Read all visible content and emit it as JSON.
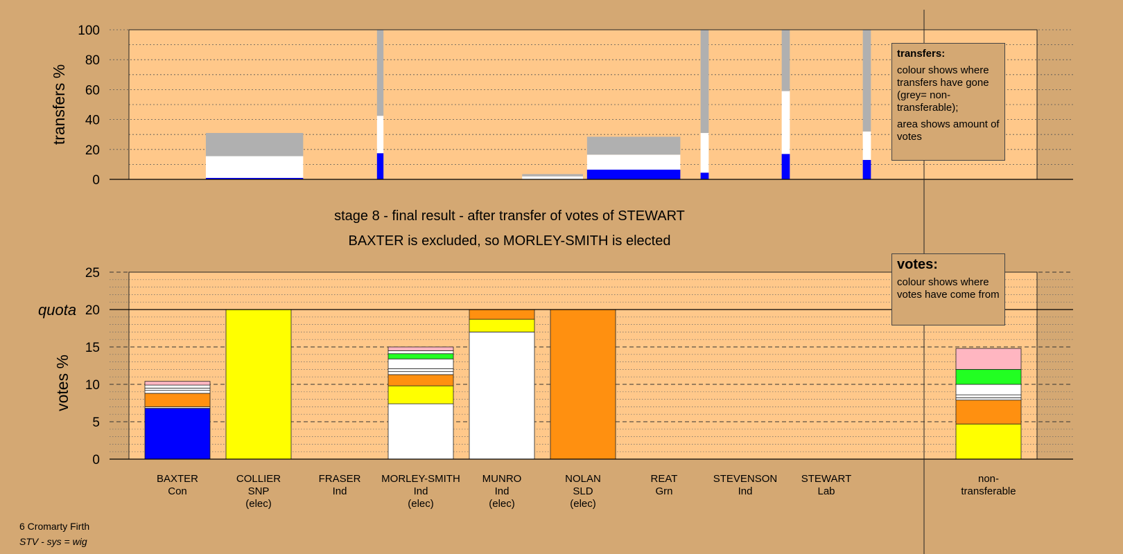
{
  "chart_data": [
    {
      "type": "bar",
      "stacked": true,
      "panel": "transfers",
      "ylabel": "transfers %",
      "ylim": [
        0,
        100
      ],
      "yticks": [
        0,
        20,
        40,
        60,
        80,
        100
      ],
      "legend": {
        "title": "transfers:",
        "lines": [
          "colour shows where transfers have gone (grey= non-transferable);",
          "area shows amount of votes"
        ]
      },
      "segments": [
        {
          "x0": 0.85,
          "x1": 2.05,
          "values": [
            {
              "color": "#0000ff",
              "value": 1
            },
            {
              "color": "#ffffff",
              "value": 14.5
            },
            {
              "color": "#b0b0b0",
              "value": 15.5
            }
          ]
        },
        {
          "x0": 2.96,
          "x1": 3.04,
          "values": [
            {
              "color": "#0000ff",
              "value": 17.5
            },
            {
              "color": "#ffffff",
              "value": 25
            },
            {
              "color": "#b0b0b0",
              "value": 57.5
            }
          ]
        },
        {
          "x0": 4.75,
          "x1": 5.5,
          "values": [
            {
              "color": "#ffffff",
              "value": 2
            },
            {
              "color": "#b0b0b0",
              "value": 1.5
            }
          ]
        },
        {
          "x0": 5.55,
          "x1": 6.7,
          "values": [
            {
              "color": "#0000ff",
              "value": 6.5
            },
            {
              "color": "#ffffff",
              "value": 10
            },
            {
              "color": "#b0b0b0",
              "value": 12
            }
          ]
        },
        {
          "x0": 6.95,
          "x1": 7.05,
          "values": [
            {
              "color": "#0000ff",
              "value": 4.5
            },
            {
              "color": "#ffffff",
              "value": 26.5
            },
            {
              "color": "#b0b0b0",
              "value": 69
            }
          ]
        },
        {
          "x0": 7.95,
          "x1": 8.05,
          "values": [
            {
              "color": "#0000ff",
              "value": 17
            },
            {
              "color": "#ffffff",
              "value": 42
            },
            {
              "color": "#b0b0b0",
              "value": 41
            }
          ]
        },
        {
          "x0": 8.95,
          "x1": 9.05,
          "values": [
            {
              "color": "#0000ff",
              "value": 13
            },
            {
              "color": "#ffffff",
              "value": 19
            },
            {
              "color": "#b0b0b0",
              "value": 68
            }
          ]
        }
      ]
    },
    {
      "type": "bar",
      "stacked": true,
      "panel": "votes",
      "ylabel": "votes %",
      "ylim": [
        0,
        25
      ],
      "yticks": [
        0,
        5,
        10,
        15,
        25
      ],
      "quota": {
        "label": "quota",
        "value": 20
      },
      "legend": {
        "title": "votes:",
        "lines": [
          "colour shows where votes have come from"
        ]
      },
      "categories": [
        {
          "name": "BAXTER",
          "party": "Con",
          "status": ""
        },
        {
          "name": "COLLIER",
          "party": "SNP",
          "status": "(elec)"
        },
        {
          "name": "FRASER",
          "party": "Ind",
          "status": ""
        },
        {
          "name": "MORLEY-SMITH",
          "party": "Ind",
          "status": "(elec)"
        },
        {
          "name": "MUNRO",
          "party": "Ind",
          "status": "(elec)"
        },
        {
          "name": "NOLAN",
          "party": "SLD",
          "status": "(elec)"
        },
        {
          "name": "REAT",
          "party": "Grn",
          "status": ""
        },
        {
          "name": "STEVENSON",
          "party": "Ind",
          "status": ""
        },
        {
          "name": "STEWART",
          "party": "Lab",
          "status": ""
        },
        {
          "name": "non-",
          "party": "transferable",
          "status": ""
        }
      ],
      "stacks": [
        [
          {
            "color": "#0000ff",
            "value": 6.8
          },
          {
            "color": "#ffffff",
            "value": 0.2
          },
          {
            "color": "#ff9010",
            "value": 1.8
          },
          {
            "color": "#ffffff",
            "value": 0.4
          },
          {
            "color": "#ffffff",
            "value": 0.3
          },
          {
            "color": "#ffffff",
            "value": 0.4
          },
          {
            "color": "#ffb6c1",
            "value": 0.5
          }
        ],
        [
          {
            "color": "#ffff00",
            "value": 20
          }
        ],
        [],
        [
          {
            "color": "#ffffff",
            "value": 7.4
          },
          {
            "color": "#ffff00",
            "value": 2.4
          },
          {
            "color": "#ff9010",
            "value": 1.5
          },
          {
            "color": "#ffffff",
            "value": 0.4
          },
          {
            "color": "#ffffff",
            "value": 0.4
          },
          {
            "color": "#ffffff",
            "value": 1.3
          },
          {
            "color": "#22ff22",
            "value": 0.7
          },
          {
            "color": "#ffffff",
            "value": 0.4
          },
          {
            "color": "#ffb6c1",
            "value": 0.5
          }
        ],
        [
          {
            "color": "#ffffff",
            "value": 17
          },
          {
            "color": "#ffff00",
            "value": 1.7
          },
          {
            "color": "#ff9010",
            "value": 1.3
          }
        ],
        [
          {
            "color": "#ff9010",
            "value": 20
          }
        ],
        [],
        [],
        [],
        [
          {
            "color": "#ffff00",
            "value": 4.7
          },
          {
            "color": "#ff9010",
            "value": 3.2
          },
          {
            "color": "#ffffff",
            "value": 0.3
          },
          {
            "color": "#ffffff",
            "value": 0.4
          },
          {
            "color": "#ffffff",
            "value": 1.4
          },
          {
            "color": "#22ff22",
            "value": 2
          },
          {
            "color": "#ffb6c1",
            "value": 2.8
          }
        ]
      ]
    }
  ],
  "headline": {
    "line1": "stage 8 - final result - after transfer of votes of STEWART",
    "line2": "BAXTER is excluded, so MORLEY-SMITH is elected"
  },
  "footer": {
    "line1": "6 Cromarty Firth",
    "line2": "STV - sys = wig"
  },
  "colors": {
    "background": "#d4a873",
    "plot_area": "#ffc88a",
    "non_transferable_grey": "#b0b0b0"
  }
}
